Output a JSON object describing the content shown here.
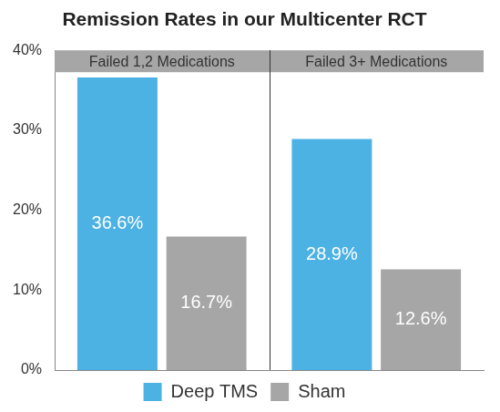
{
  "chart_data": {
    "type": "bar",
    "title": "Remission Rates in our Multicenter RCT",
    "categories": [
      "Failed 1,2 Medications",
      "Failed 3+ Medications"
    ],
    "series": [
      {
        "name": "Deep TMS",
        "color": "#4cb1e3",
        "values": [
          36.6,
          28.9
        ],
        "value_labels": [
          "36.6%",
          "28.9%"
        ]
      },
      {
        "name": "Sham",
        "color": "#a6a6a6",
        "values": [
          16.7,
          12.6
        ],
        "value_labels": [
          "16.7%",
          "12.6%"
        ]
      }
    ],
    "ylim": [
      0,
      40
    ],
    "yticks": [
      {
        "value": 0,
        "label": "0%"
      },
      {
        "value": 10,
        "label": "10%"
      },
      {
        "value": 20,
        "label": "20%"
      },
      {
        "value": 30,
        "label": "30%"
      },
      {
        "value": 40,
        "label": "40%"
      }
    ],
    "grid": false,
    "legend": "bottom",
    "data_labels": true
  }
}
